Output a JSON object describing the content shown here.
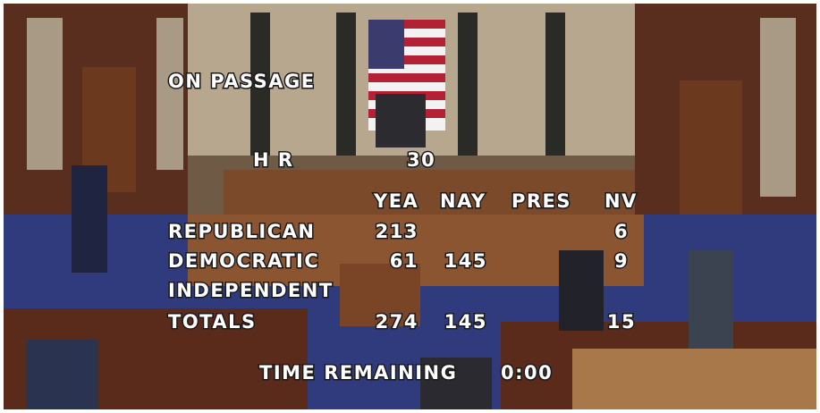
{
  "overlay": {
    "motion": "ON PASSAGE",
    "bill": {
      "prefix": "H R",
      "number": 30
    },
    "headers": {
      "yea": "YEA",
      "nay": "NAY",
      "pres": "PRES",
      "nv": "NV"
    },
    "rows": [
      {
        "party": "REPUBLICAN",
        "yea": 213,
        "nv": 6
      },
      {
        "party": "DEMOCRATIC",
        "yea": 61,
        "nay": 145,
        "nv": 9
      },
      {
        "party": "INDEPENDENT"
      },
      {
        "party": "TOTALS",
        "yea": 274,
        "nay": 145,
        "nv": 15
      }
    ],
    "timer": {
      "label": "TIME REMAINING",
      "value": "0:00"
    }
  }
}
